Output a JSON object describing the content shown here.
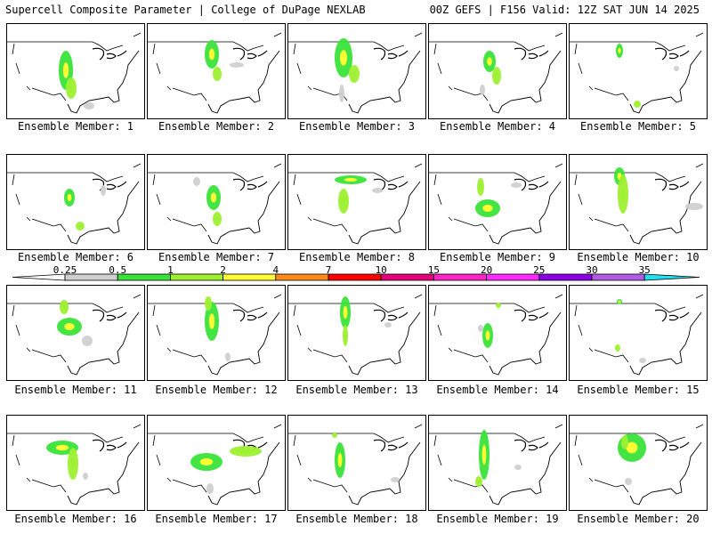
{
  "header": {
    "title_left": "Supercell Composite Parameter | College of DuPage NEXLAB",
    "title_right": "00Z GEFS | F156 Valid: 12Z SAT JUN 14 2025"
  },
  "colorbar": {
    "labels": [
      "0.25",
      "0.5",
      "1",
      "2",
      "4",
      "7",
      "10",
      "15",
      "20",
      "25",
      "30",
      "35"
    ],
    "colors": [
      "#d0d0d0",
      "#39e339",
      "#9ef033",
      "#ffff33",
      "#ff8a1a",
      "#ff0000",
      "#e4007a",
      "#ff24c8",
      "#ff2aff",
      "#8a00e6",
      "#b05ce6",
      "#22e0f0"
    ]
  },
  "members": [
    {
      "label": "Ensemble Member: 1"
    },
    {
      "label": "Ensemble Member: 2"
    },
    {
      "label": "Ensemble Member: 3"
    },
    {
      "label": "Ensemble Member: 4"
    },
    {
      "label": "Ensemble Member: 5"
    },
    {
      "label": "Ensemble Member: 6"
    },
    {
      "label": "Ensemble Member: 7"
    },
    {
      "label": "Ensemble Member: 8"
    },
    {
      "label": "Ensemble Member: 9"
    },
    {
      "label": "Ensemble Member: 10"
    },
    {
      "label": "Ensemble Member: 11"
    },
    {
      "label": "Ensemble Member: 12"
    },
    {
      "label": "Ensemble Member: 13"
    },
    {
      "label": "Ensemble Member: 14"
    },
    {
      "label": "Ensemble Member: 15"
    },
    {
      "label": "Ensemble Member: 16"
    },
    {
      "label": "Ensemble Member: 17"
    },
    {
      "label": "Ensemble Member: 18"
    },
    {
      "label": "Ensemble Member: 19"
    },
    {
      "label": "Ensemble Member: 20"
    }
  ]
}
